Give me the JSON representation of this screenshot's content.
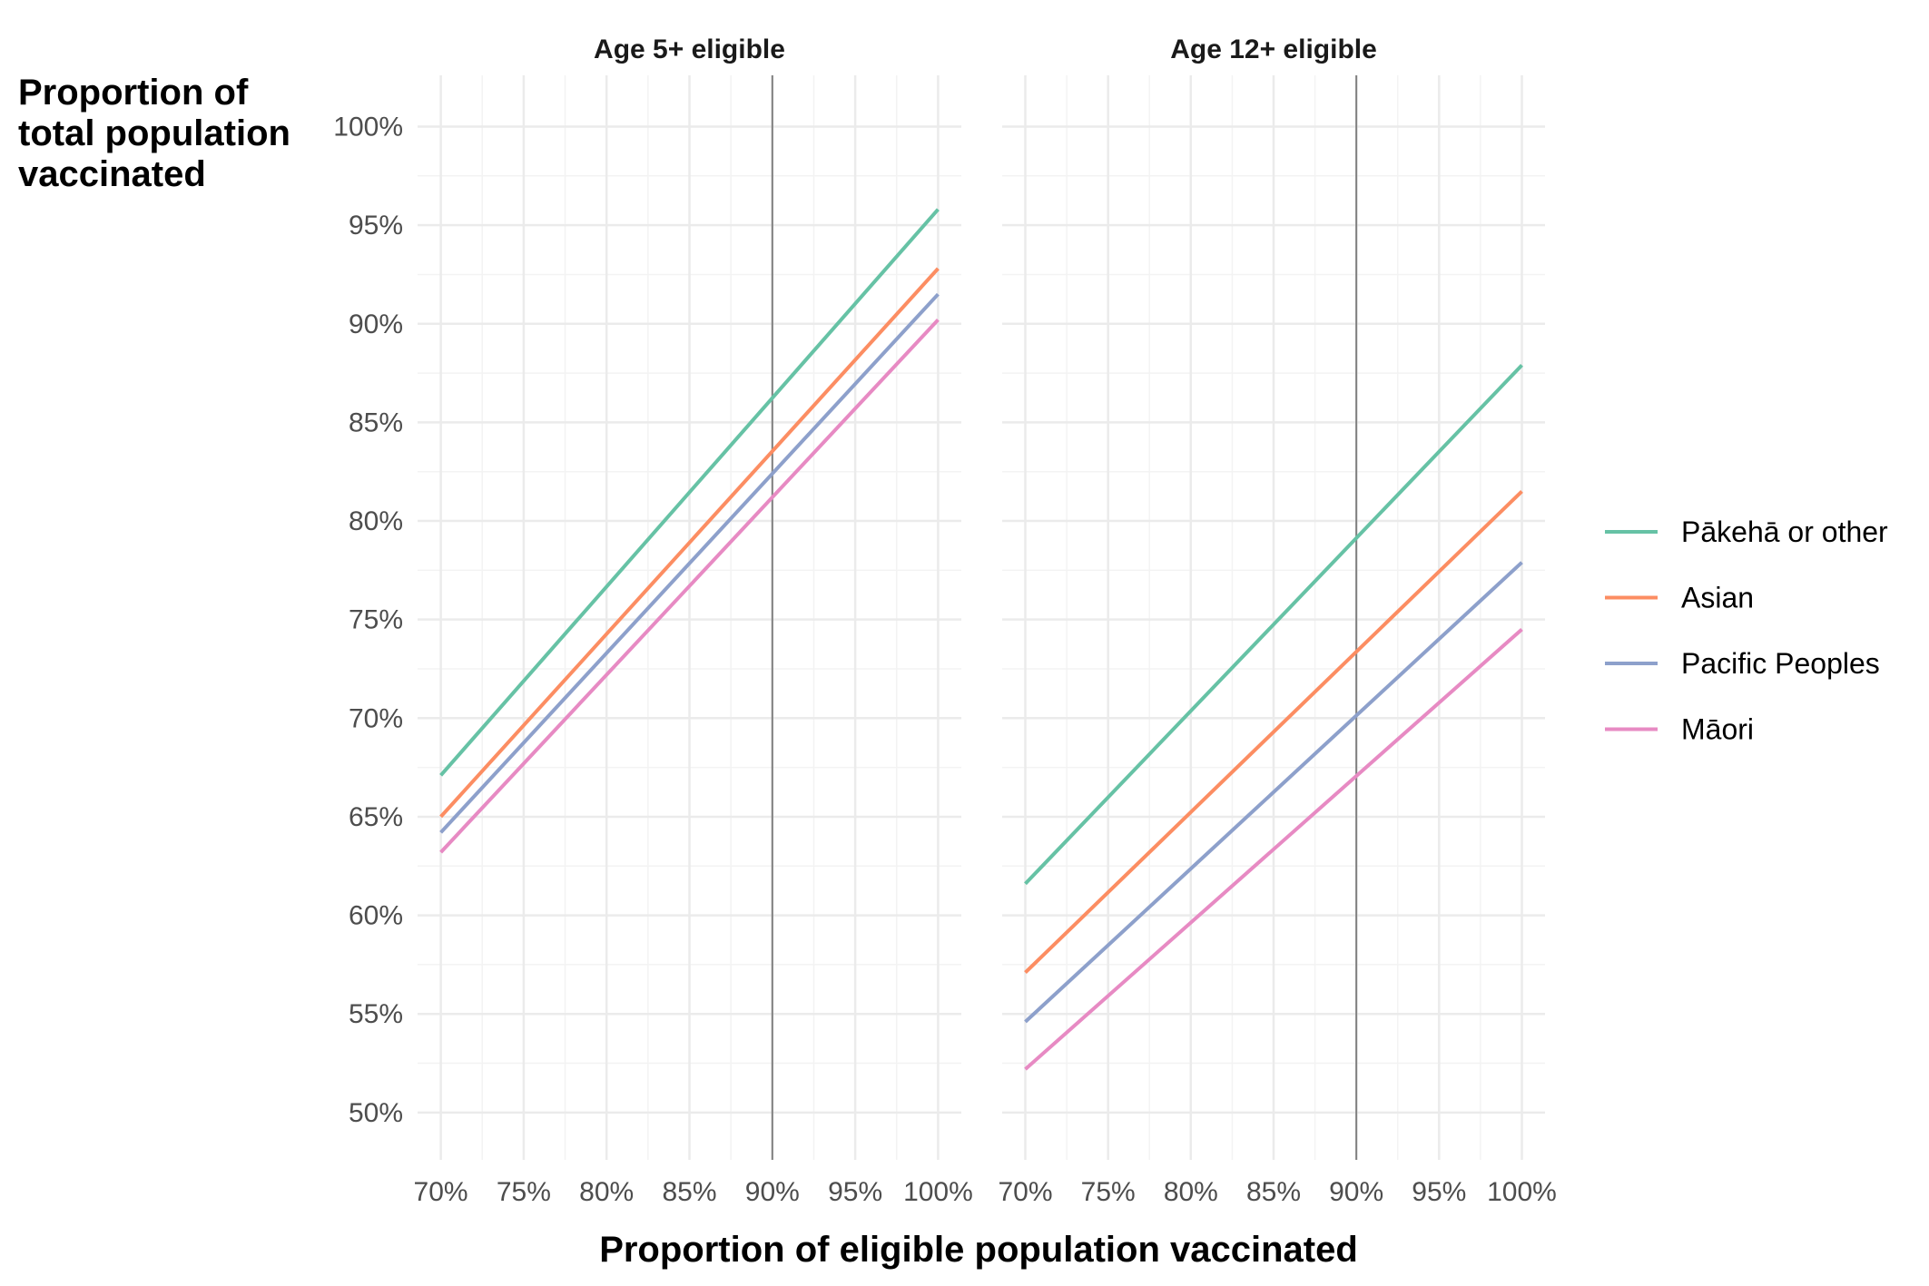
{
  "chart_data": {
    "type": "line",
    "facet_titles": [
      "Age 5+ eligible",
      "Age 12+ eligible"
    ],
    "xlabel": "Proportion of eligible population vaccinated",
    "ylabel_lines": [
      "Proportion of",
      "total population",
      "vaccinated"
    ],
    "x_ticks": [
      70,
      75,
      80,
      85,
      90,
      95,
      100
    ],
    "x_tick_labels": [
      "70%",
      "75%",
      "80%",
      "85%",
      "90%",
      "95%",
      "100%"
    ],
    "y_ticks": [
      50,
      55,
      60,
      65,
      70,
      75,
      80,
      85,
      90,
      95,
      100
    ],
    "y_tick_labels": [
      "50%",
      "55%",
      "60%",
      "65%",
      "70%",
      "75%",
      "80%",
      "85%",
      "90%",
      "95%",
      "100%"
    ],
    "xlim": [
      68.6,
      101.4
    ],
    "ylim": [
      47.6,
      102.6
    ],
    "reference_line_x": 90,
    "grid": true,
    "legend_position": "right",
    "series_names": [
      "Pākehā or other",
      "Asian",
      "Pacific Peoples",
      "Māori"
    ],
    "colors": [
      "#66c2a5",
      "#fc8d62",
      "#8da0cb",
      "#e78ac3"
    ],
    "reference_line_color": "#808080",
    "panels": [
      {
        "title": "Age 5+ eligible",
        "series": [
          {
            "name": "Pākehā or other",
            "x": [
              70,
              100
            ],
            "y": [
              67.1,
              95.8
            ]
          },
          {
            "name": "Asian",
            "x": [
              70,
              100
            ],
            "y": [
              65.0,
              92.8
            ]
          },
          {
            "name": "Pacific Peoples",
            "x": [
              70,
              100
            ],
            "y": [
              64.2,
              91.5
            ]
          },
          {
            "name": "Māori",
            "x": [
              70,
              100
            ],
            "y": [
              63.2,
              90.2
            ]
          }
        ]
      },
      {
        "title": "Age 12+ eligible",
        "series": [
          {
            "name": "Pākehā or other",
            "x": [
              70,
              100
            ],
            "y": [
              61.6,
              87.9
            ]
          },
          {
            "name": "Asian",
            "x": [
              70,
              100
            ],
            "y": [
              57.1,
              81.5
            ]
          },
          {
            "name": "Pacific Peoples",
            "x": [
              70,
              100
            ],
            "y": [
              54.6,
              77.9
            ]
          },
          {
            "name": "Māori",
            "x": [
              70,
              100
            ],
            "y": [
              52.2,
              74.5
            ]
          }
        ]
      }
    ]
  }
}
